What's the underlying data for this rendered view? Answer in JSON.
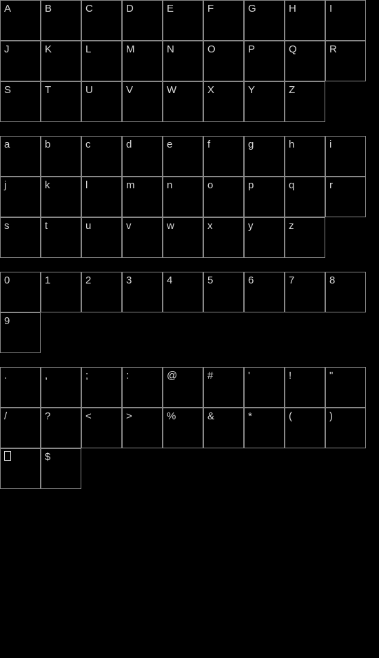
{
  "background_color": "#000000",
  "cell_border_color": "#888888",
  "glyph_color": "#d8d8d8",
  "cell_size": 59,
  "sections": [
    {
      "name": "uppercase",
      "cols": 9,
      "cells": [
        "A",
        "B",
        "C",
        "D",
        "E",
        "F",
        "G",
        "H",
        "I",
        "J",
        "K",
        "L",
        "M",
        "N",
        "O",
        "P",
        "Q",
        "R",
        "S",
        "T",
        "U",
        "V",
        "W",
        "X",
        "Y",
        "Z"
      ]
    },
    {
      "name": "lowercase",
      "cols": 9,
      "cells": [
        "a",
        "b",
        "c",
        "d",
        "e",
        "f",
        "g",
        "h",
        "i",
        "j",
        "k",
        "l",
        "m",
        "n",
        "o",
        "p",
        "q",
        "r",
        "s",
        "t",
        "u",
        "v",
        "w",
        "x",
        "y",
        "z"
      ]
    },
    {
      "name": "digits",
      "cols": 9,
      "cells": [
        "0",
        "1",
        "2",
        "3",
        "4",
        "5",
        "6",
        "7",
        "8",
        "9"
      ]
    },
    {
      "name": "symbols",
      "cols": 9,
      "cells": [
        ".",
        ",",
        ";",
        ":",
        "@",
        "#",
        "'",
        "!",
        "\"",
        "/",
        "?",
        "<",
        ">",
        "%",
        "&",
        "*",
        "(",
        ")",
        "□",
        "$"
      ]
    }
  ]
}
